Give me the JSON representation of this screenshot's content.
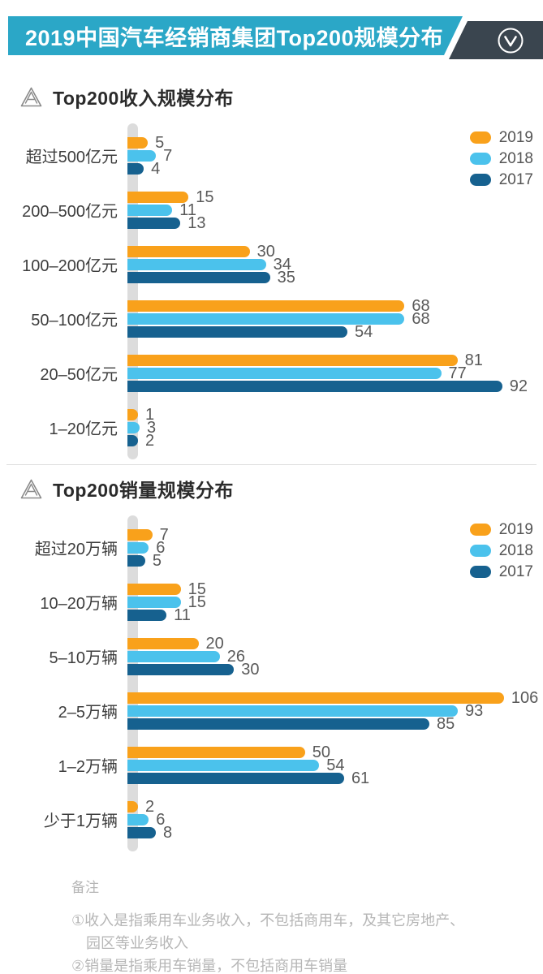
{
  "header": {
    "title": "2019中国汽车经销商集团Top200规模分布",
    "teal_color": "#2BA7C7",
    "dark_color": "#3A454F",
    "chevron_icon": "chevron-down-circle"
  },
  "colors": {
    "bar_2019": "#F9A11B",
    "bar_2018": "#4BC2EC",
    "bar_2017": "#16618F",
    "axis_gray": "#dcdcdc",
    "divider_gray": "#dddddd",
    "notes_gray": "#b6b6b6"
  },
  "chart_data": [
    {
      "type": "bar",
      "orientation": "horizontal",
      "title": "Top200收入规模分布",
      "title_icon": "triangle-logo",
      "categories": [
        "超过500亿元",
        "200–500亿元",
        "100–200亿元",
        "50–100亿元",
        "20–50亿元",
        "1–20亿元"
      ],
      "series": [
        {
          "name": "2019",
          "color": "#F9A11B",
          "values": [
            5,
            15,
            30,
            68,
            81,
            1
          ]
        },
        {
          "name": "2018",
          "color": "#4BC2EC",
          "values": [
            7,
            11,
            34,
            68,
            77,
            3
          ]
        },
        {
          "name": "2017",
          "color": "#16618F",
          "values": [
            4,
            13,
            35,
            54,
            92,
            2
          ]
        }
      ],
      "xmax": 102,
      "grid": false,
      "legend_position": "top-right",
      "value_labels": true
    },
    {
      "type": "bar",
      "orientation": "horizontal",
      "title": "Top200销量规模分布",
      "title_icon": "triangle-logo",
      "categories": [
        "超过20万辆",
        "10–20万辆",
        "5–10万辆",
        "2–5万辆",
        "1–2万辆",
        "少于1万辆"
      ],
      "series": [
        {
          "name": "2019",
          "color": "#F9A11B",
          "values": [
            7,
            15,
            20,
            106,
            50,
            2
          ]
        },
        {
          "name": "2018",
          "color": "#4BC2EC",
          "values": [
            6,
            15,
            26,
            93,
            54,
            6
          ]
        },
        {
          "name": "2017",
          "color": "#16618F",
          "values": [
            5,
            11,
            30,
            85,
            61,
            8
          ]
        }
      ],
      "xmax": 117,
      "grid": false,
      "legend_position": "top-right",
      "value_labels": true
    }
  ],
  "notes": {
    "heading": "备注",
    "lines": [
      "①收入是指乘用车业务收入，不包括商用车，及其它房地产、",
      "园区等业务收入",
      "②销量是指乘用车销量，不包括商用车销量"
    ]
  }
}
